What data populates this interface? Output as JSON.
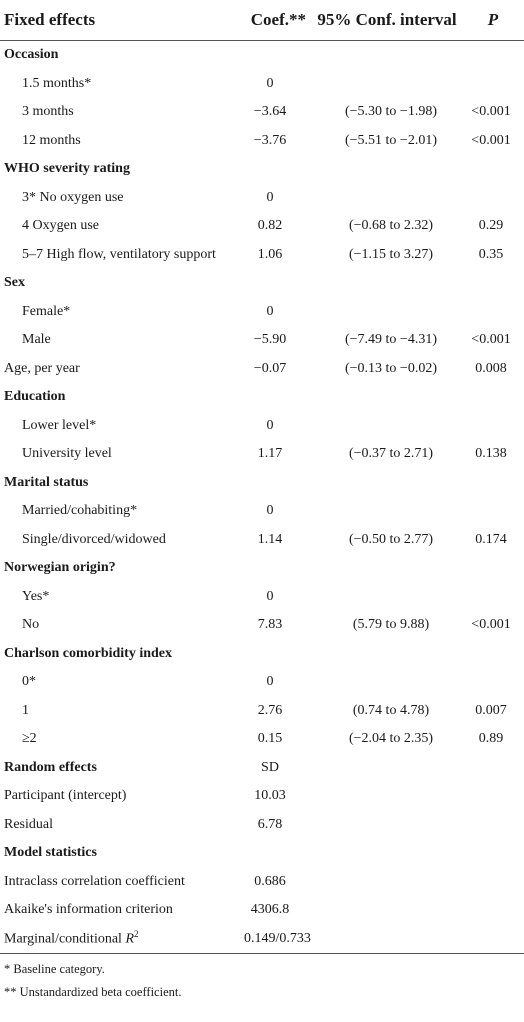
{
  "headers": {
    "effects": "Fixed effects",
    "coef": "Coef.**",
    "ci": "95% Conf. interval",
    "p": "P"
  },
  "rows": [
    {
      "label": "Occasion",
      "type": "section",
      "coef": "",
      "ci": "",
      "p": ""
    },
    {
      "label": "1.5 months*",
      "type": "sub",
      "coef": "0",
      "ci": "",
      "p": ""
    },
    {
      "label": "3 months",
      "type": "sub",
      "coef": "−3.64",
      "ci": "(−5.30 to −1.98)",
      "p": "<0.001"
    },
    {
      "label": "12 months",
      "type": "sub",
      "coef": "−3.76",
      "ci": "(−5.51 to −2.01)",
      "p": "<0.001"
    },
    {
      "label": "WHO severity rating",
      "type": "section",
      "coef": "",
      "ci": "",
      "p": ""
    },
    {
      "label": "3* No oxygen use",
      "type": "sub",
      "coef": "0",
      "ci": "",
      "p": ""
    },
    {
      "label": "4 Oxygen use",
      "type": "sub",
      "coef": "0.82",
      "ci": "(−0.68 to 2.32)",
      "p": "0.29"
    },
    {
      "label": "5–7 High flow, ventilatory support",
      "type": "sub",
      "coef": "1.06",
      "ci": "(−1.15 to 3.27)",
      "p": "0.35"
    },
    {
      "label": "Sex",
      "type": "section",
      "coef": "",
      "ci": "",
      "p": ""
    },
    {
      "label": "Female*",
      "type": "sub",
      "coef": "0",
      "ci": "",
      "p": ""
    },
    {
      "label": "Male",
      "type": "sub",
      "coef": "−5.90",
      "ci": "(−7.49 to −4.31)",
      "p": "<0.001"
    },
    {
      "label": "Age, per year",
      "type": "plain",
      "coef": "−0.07",
      "ci": "(−0.13 to −0.02)",
      "p": "0.008"
    },
    {
      "label": "Education",
      "type": "section",
      "coef": "",
      "ci": "",
      "p": ""
    },
    {
      "label": "Lower level*",
      "type": "sub",
      "coef": "0",
      "ci": "",
      "p": ""
    },
    {
      "label": "University level",
      "type": "sub",
      "coef": "1.17",
      "ci": "(−0.37 to 2.71)",
      "p": "0.138"
    },
    {
      "label": "Marital status",
      "type": "section",
      "coef": "",
      "ci": "",
      "p": ""
    },
    {
      "label": "Married/cohabiting*",
      "type": "sub",
      "coef": "0",
      "ci": "",
      "p": ""
    },
    {
      "label": "Single/divorced/widowed",
      "type": "sub",
      "coef": "1.14",
      "ci": "(−0.50 to 2.77)",
      "p": "0.174"
    },
    {
      "label": "Norwegian origin?",
      "type": "section",
      "coef": "",
      "ci": "",
      "p": ""
    },
    {
      "label": "Yes*",
      "type": "sub",
      "coef": "0",
      "ci": "",
      "p": ""
    },
    {
      "label": "No",
      "type": "sub",
      "coef": "7.83",
      "ci": "(5.79 to 9.88)",
      "p": "<0.001"
    },
    {
      "label": "Charlson comorbidity index",
      "type": "section",
      "coef": "",
      "ci": "",
      "p": ""
    },
    {
      "label": "0*",
      "type": "sub",
      "coef": "0",
      "ci": "",
      "p": ""
    },
    {
      "label": "1",
      "type": "sub",
      "coef": "2.76",
      "ci": "(0.74 to 4.78)",
      "p": "0.007"
    },
    {
      "label": "≥2",
      "type": "sub",
      "coef": "0.15",
      "ci": "(−2.04 to 2.35)",
      "p": "0.89"
    },
    {
      "label": "Random effects",
      "type": "section",
      "coef": "SD",
      "ci": "",
      "p": ""
    },
    {
      "label": "Participant (intercept)",
      "type": "plain",
      "coef": "10.03",
      "ci": "",
      "p": ""
    },
    {
      "label": "Residual",
      "type": "plain",
      "coef": "6.78",
      "ci": "",
      "p": ""
    },
    {
      "label": "Model statistics",
      "type": "section",
      "coef": "",
      "ci": "",
      "p": ""
    },
    {
      "label": "Intraclass correlation coefficient",
      "type": "plain",
      "coef": "0.686",
      "ci": "",
      "p": ""
    },
    {
      "label": "Akaike's information criterion",
      "type": "plain",
      "coef": "4306.8",
      "ci": "",
      "p": ""
    },
    {
      "label": "Marginal/conditional R2",
      "type": "plain",
      "coef": "0.149/0.733",
      "ci": "",
      "p": ""
    }
  ],
  "footnotes": [
    "* Baseline category.",
    "** Unstandardized beta coefficient."
  ]
}
